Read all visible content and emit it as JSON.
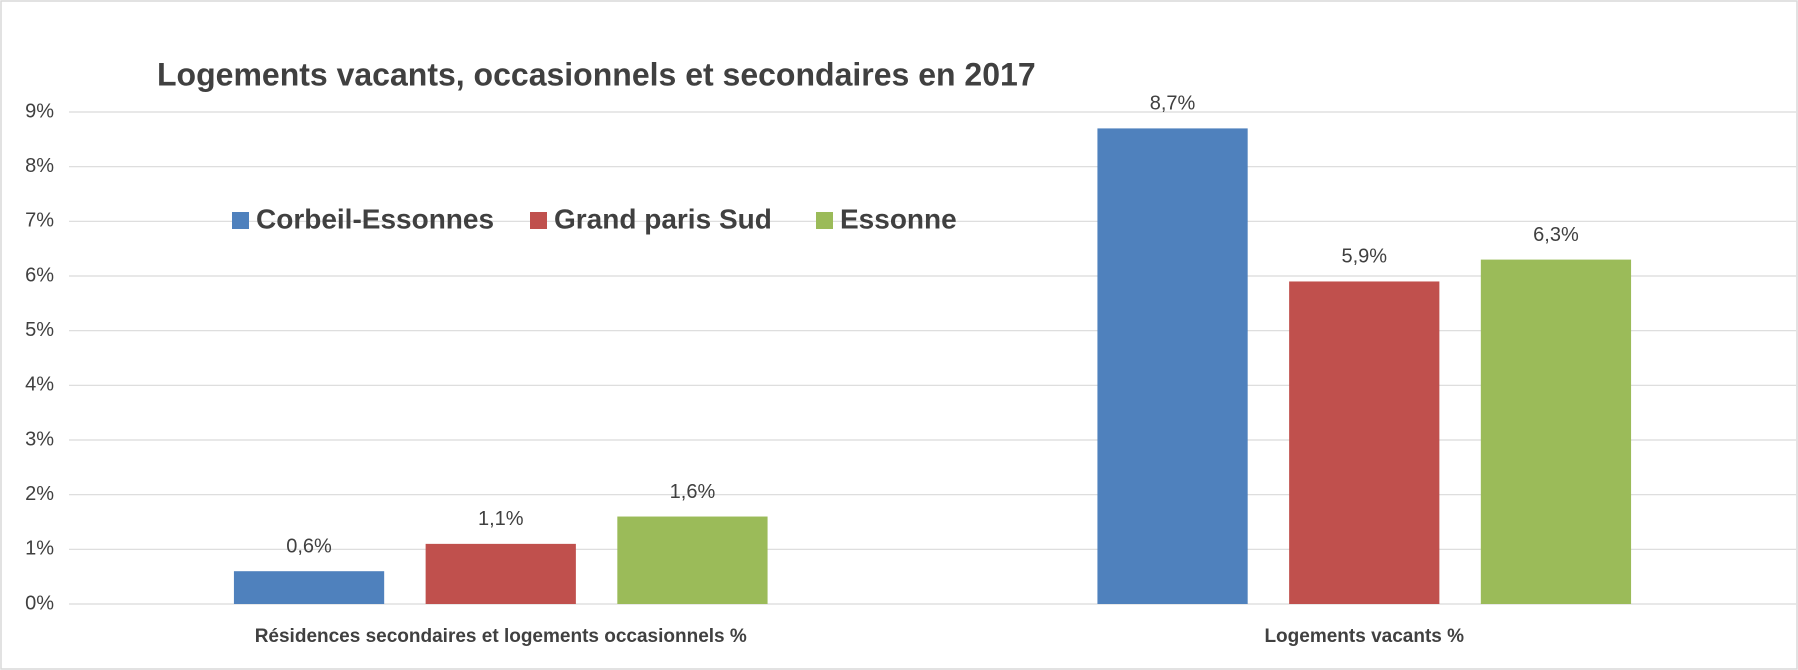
{
  "chart_data": {
    "type": "bar",
    "title": "Logements vacants, occasionnels et secondaires en 2017",
    "categories": [
      "Résidences secondaires et logements occasionnels %",
      "Logements vacants %"
    ],
    "series": [
      {
        "name": "Corbeil-Essonnes",
        "color": "#4f81bd",
        "values": [
          0.6,
          8.7
        ],
        "value_labels": [
          "0,6%",
          "8,7%"
        ]
      },
      {
        "name": "Grand paris Sud",
        "color": "#c0504d",
        "values": [
          1.1,
          5.9
        ],
        "value_labels": [
          "1,1%",
          "5,9%"
        ]
      },
      {
        "name": "Essonne",
        "color": "#9bbb59",
        "values": [
          1.6,
          6.3
        ],
        "value_labels": [
          "1,6%",
          "6,3%"
        ]
      }
    ],
    "ylim": [
      0,
      9
    ],
    "yticks": [
      {
        "value": 0,
        "label": "0%"
      },
      {
        "value": 1,
        "label": "1%"
      },
      {
        "value": 2,
        "label": "2%"
      },
      {
        "value": 3,
        "label": "3%"
      },
      {
        "value": 4,
        "label": "4%"
      },
      {
        "value": 5,
        "label": "5%"
      },
      {
        "value": 6,
        "label": "6%"
      },
      {
        "value": 7,
        "label": "7%"
      },
      {
        "value": 8,
        "label": "8%"
      },
      {
        "value": 9,
        "label": "9%"
      }
    ],
    "grid": true,
    "legend": "top-left"
  }
}
